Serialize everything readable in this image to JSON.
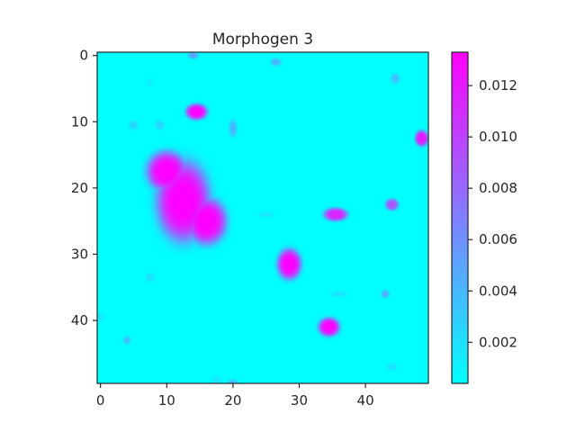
{
  "chart_data": {
    "type": "heatmap",
    "title": "Morphogen 3",
    "xlabel": "",
    "ylabel": "",
    "grid_shape": [
      50,
      50
    ],
    "xlim": [
      -0.5,
      49.5
    ],
    "ylim": [
      49.5,
      -0.5
    ],
    "x_ticks": [
      0,
      10,
      20,
      30,
      40
    ],
    "y_ticks": [
      0,
      10,
      20,
      30,
      40
    ],
    "x_tick_labels": [
      "0",
      "10",
      "20",
      "30",
      "40"
    ],
    "y_tick_labels": [
      "0",
      "10",
      "20",
      "30",
      "40"
    ],
    "colormap": "cool",
    "colormap_colors": [
      "#00ffff",
      "#ff00ff"
    ],
    "value_range": [
      0.0004,
      0.0133
    ],
    "background_value": 0.0004,
    "colorbar": {
      "ticks": [
        0.002,
        0.004,
        0.006,
        0.008,
        0.01,
        0.012
      ],
      "tick_labels": [
        "0.002",
        "0.004",
        "0.006",
        "0.008",
        "0.010",
        "0.012"
      ],
      "range": [
        0.0004,
        0.0133
      ]
    },
    "grid": false,
    "blobs": [
      {
        "col": 12.5,
        "row": 22.0,
        "radius_cols": 4.0,
        "radius_rows": 6.0,
        "value": 0.0133
      },
      {
        "col": 10.0,
        "row": 17.5,
        "radius_cols": 3.0,
        "radius_rows": 3.0,
        "value": 0.0133
      },
      {
        "col": 16.0,
        "row": 25.0,
        "radius_cols": 3.0,
        "radius_rows": 3.5,
        "value": 0.0133
      },
      {
        "col": 28.5,
        "row": 31.5,
        "radius_cols": 1.8,
        "radius_rows": 2.3,
        "value": 0.0133
      },
      {
        "col": 14.5,
        "row": 8.5,
        "radius_cols": 1.6,
        "radius_rows": 1.2,
        "value": 0.0133
      },
      {
        "col": 34.5,
        "row": 41.0,
        "radius_cols": 1.6,
        "radius_rows": 1.4,
        "value": 0.0133
      },
      {
        "col": 35.5,
        "row": 24.0,
        "radius_cols": 1.8,
        "radius_rows": 1.0,
        "value": 0.0115
      },
      {
        "col": 48.5,
        "row": 12.5,
        "radius_cols": 1.0,
        "radius_rows": 1.2,
        "value": 0.0122
      },
      {
        "col": 44.0,
        "row": 22.5,
        "radius_cols": 1.0,
        "radius_rows": 0.9,
        "value": 0.009
      },
      {
        "col": 20.0,
        "row": 11.0,
        "radius_cols": 0.6,
        "radius_rows": 1.3,
        "value": 0.004
      },
      {
        "col": 14.0,
        "row": 0.0,
        "radius_cols": 0.8,
        "radius_rows": 0.5,
        "value": 0.005
      },
      {
        "col": 26.5,
        "row": 1.0,
        "radius_cols": 0.8,
        "radius_rows": 0.6,
        "value": 0.004
      },
      {
        "col": 44.5,
        "row": 3.5,
        "radius_cols": 0.7,
        "radius_rows": 0.8,
        "value": 0.0035
      },
      {
        "col": 43.0,
        "row": 36.0,
        "radius_cols": 0.6,
        "radius_rows": 0.6,
        "value": 0.0045
      },
      {
        "col": 20.0,
        "row": 49.5,
        "radius_cols": 0.8,
        "radius_rows": 0.6,
        "value": 0.004
      },
      {
        "col": 4.0,
        "row": 43.0,
        "radius_cols": 0.6,
        "radius_rows": 0.6,
        "value": 0.0035
      },
      {
        "col": 5.0,
        "row": 10.5,
        "radius_cols": 0.7,
        "radius_rows": 0.7,
        "value": 0.0025
      },
      {
        "col": 9.0,
        "row": 10.5,
        "radius_cols": 0.7,
        "radius_rows": 0.7,
        "value": 0.0025
      },
      {
        "col": 7.5,
        "row": 33.5,
        "radius_cols": 0.7,
        "radius_rows": 0.7,
        "value": 0.002
      },
      {
        "col": 36.0,
        "row": 36.0,
        "radius_cols": 1.2,
        "radius_rows": 0.5,
        "value": 0.0018
      },
      {
        "col": 25.0,
        "row": 24.0,
        "radius_cols": 1.2,
        "radius_rows": 0.5,
        "value": 0.0016
      },
      {
        "col": 44.0,
        "row": 47.0,
        "radius_cols": 0.8,
        "radius_rows": 0.6,
        "value": 0.0018
      },
      {
        "col": 17.5,
        "row": 49.0,
        "radius_cols": 0.8,
        "radius_rows": 0.6,
        "value": 0.0015
      },
      {
        "col": 0.0,
        "row": 39.5,
        "radius_cols": 0.6,
        "radius_rows": 0.8,
        "value": 0.0016
      },
      {
        "col": 7.5,
        "row": 4.0,
        "radius_cols": 0.6,
        "radius_rows": 0.6,
        "value": 0.0012
      }
    ]
  }
}
